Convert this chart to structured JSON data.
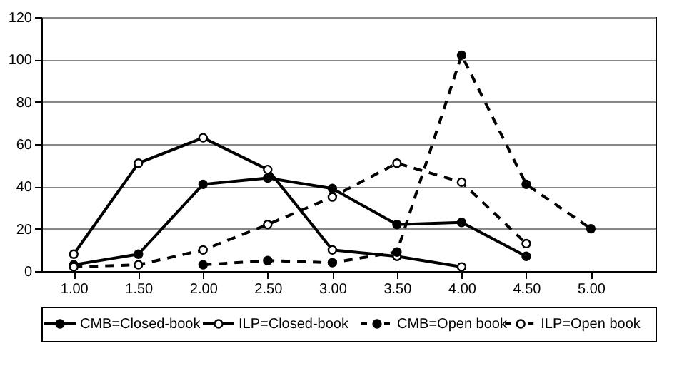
{
  "chart_data": {
    "type": "line",
    "categories": [
      "1.00",
      "1.50",
      "2.00",
      "2.50",
      "3.00",
      "3.50",
      "4.00",
      "4.50",
      "5.00"
    ],
    "series": [
      {
        "name": "CMB=Closed-book",
        "color": "#000000",
        "line_style": "solid",
        "marker": "circle",
        "values": [
          3,
          8,
          41,
          44,
          39,
          22,
          23,
          7,
          null
        ]
      },
      {
        "name": "ILP=Closed-book",
        "color": "#ffffff",
        "line_style": "solid",
        "marker": "circle",
        "values": [
          8,
          51,
          63,
          48,
          10,
          7,
          2,
          null,
          null
        ]
      },
      {
        "name": "CMB=Open book",
        "color": "#000000",
        "line_style": "dashed",
        "marker": "circle",
        "values": [
          null,
          null,
          3,
          5,
          4,
          9,
          102,
          41,
          20
        ]
      },
      {
        "name": "ILP=Open book",
        "color": "#ffffff",
        "line_style": "dashed",
        "marker": "circle",
        "values": [
          2,
          3,
          10,
          22,
          35,
          51,
          42,
          13,
          null
        ]
      }
    ],
    "ylim": [
      0,
      120
    ],
    "yticks": [
      0,
      20,
      40,
      60,
      80,
      100,
      120
    ],
    "grid": "y",
    "legend": "bottom"
  }
}
